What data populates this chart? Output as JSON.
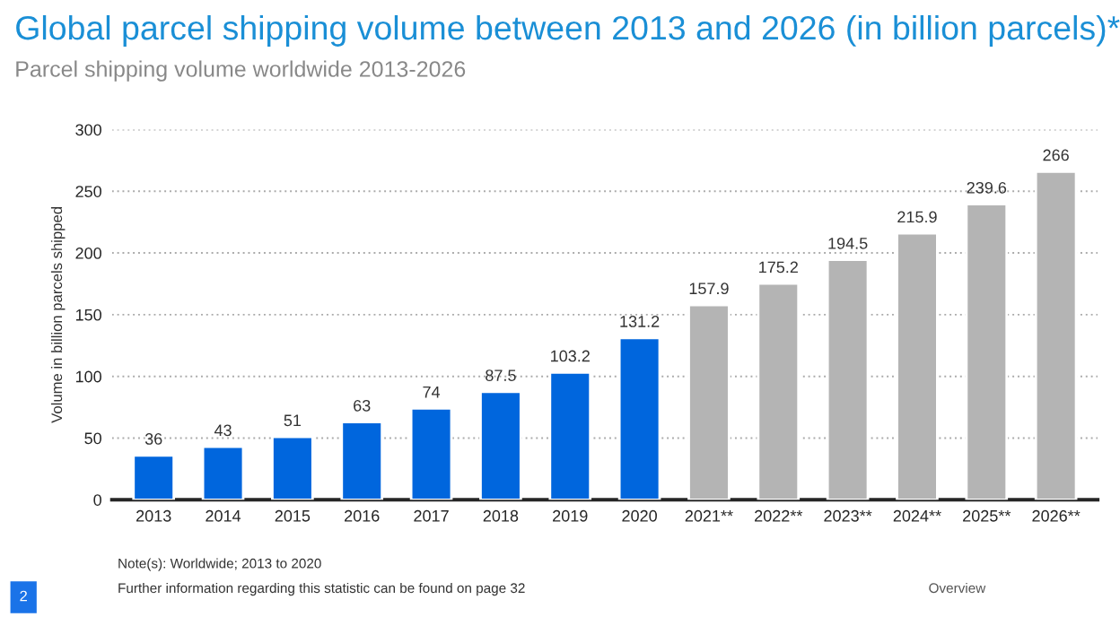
{
  "chart_data": {
    "type": "bar",
    "title": "Global parcel shipping volume between 2013 and 2026 (in billion parcels)*",
    "subtitle": "Parcel shipping volume worldwide 2013-2026",
    "ylabel": "Volume in billion parcels shipped",
    "categories": [
      "2013",
      "2014",
      "2015",
      "2016",
      "2017",
      "2018",
      "2019",
      "2020",
      "2021**",
      "2022**",
      "2023**",
      "2024**",
      "2025**",
      "2026**"
    ],
    "values": [
      36,
      43,
      51,
      63,
      74,
      87.5,
      103.2,
      131.2,
      157.9,
      175.2,
      194.5,
      215.9,
      239.6,
      266
    ],
    "colors": [
      "#0066dd",
      "#0066dd",
      "#0066dd",
      "#0066dd",
      "#0066dd",
      "#0066dd",
      "#0066dd",
      "#0066dd",
      "#b4b4b4",
      "#b4b4b4",
      "#b4b4b4",
      "#b4b4b4",
      "#b4b4b4",
      "#b4b4b4"
    ],
    "ylim": [
      0,
      300
    ],
    "yticks": [
      0,
      50,
      100,
      150,
      200,
      250,
      300
    ],
    "grid": "y",
    "data_labels": true,
    "annotations": [
      "Note(s): Worldwide; 2013 to 2020",
      "Further information regarding this statistic can be found on page 32",
      "2",
      "Overview"
    ]
  }
}
